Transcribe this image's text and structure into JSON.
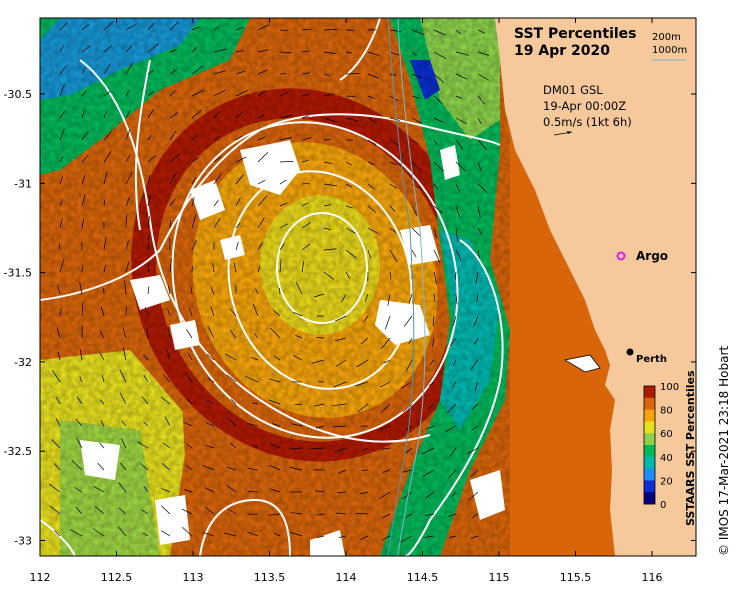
{
  "title": {
    "line1": "SST Percentiles",
    "line2": "19 Apr 2020"
  },
  "depth_legend": {
    "contour1": "200m",
    "contour2": "1000m"
  },
  "current_info": {
    "model": "DM01 GSL",
    "time": "19-Apr 00:00Z",
    "scale": "0.5m/s (1kt 6h)"
  },
  "markers": {
    "argo": "Argo",
    "city": "Perth"
  },
  "colorbar": {
    "label": "SSTAARS SST Percentiles",
    "ticks": [
      "100",
      "80",
      "60",
      "40",
      "20",
      "0"
    ],
    "colors": [
      "#b01900",
      "#d9650a",
      "#f5a50a",
      "#e6e01e",
      "#8cd24b",
      "#00b85a",
      "#00b8b0",
      "#1e8cff",
      "#0a2ed0",
      "#000080"
    ]
  },
  "axes": {
    "x_ticks": [
      "112",
      "112.5",
      "113",
      "113.5",
      "114",
      "114.5",
      "115",
      "115.5",
      "116"
    ],
    "y_ticks": [
      "-30.5",
      "-31",
      "-31.5",
      "-32",
      "-32.5",
      "-33"
    ]
  },
  "credit": "© IMOS 17-Mar-2021 23:18 Hobart",
  "colors": {
    "land": "#f5c99b",
    "contour": "#ffffff",
    "argo_marker": "#e81ee8"
  }
}
